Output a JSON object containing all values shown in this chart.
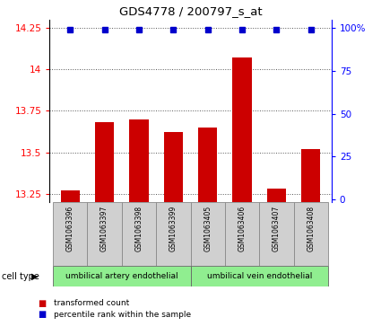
{
  "title": "GDS4778 / 200797_s_at",
  "samples": [
    "GSM1063396",
    "GSM1063397",
    "GSM1063398",
    "GSM1063399",
    "GSM1063405",
    "GSM1063406",
    "GSM1063407",
    "GSM1063408"
  ],
  "bar_values": [
    13.27,
    13.68,
    13.7,
    13.62,
    13.65,
    14.07,
    13.28,
    13.52
  ],
  "percentile_vals_right": [
    99,
    99,
    99,
    99,
    99,
    99,
    99,
    99
  ],
  "bar_color": "#cc0000",
  "percentile_color": "#0000cc",
  "ylim_left": [
    13.2,
    14.3
  ],
  "ylim_right": [
    -1.5,
    105
  ],
  "yticks_left": [
    13.25,
    13.5,
    13.75,
    14.0,
    14.25
  ],
  "yticks_right": [
    0,
    25,
    50,
    75,
    100
  ],
  "ytick_labels_left": [
    "13.25",
    "13.5",
    "13.75",
    "14",
    "14.25"
  ],
  "ytick_labels_right": [
    "0",
    "25",
    "50",
    "75",
    "100%"
  ],
  "cell_type_groups": [
    {
      "label": "umbilical artery endothelial",
      "indices": [
        0,
        1,
        2,
        3
      ],
      "color": "#90ee90"
    },
    {
      "label": "umbilical vein endothelial",
      "indices": [
        4,
        5,
        6,
        7
      ],
      "color": "#90ee90"
    }
  ],
  "cell_type_label": "cell type",
  "legend_items": [
    {
      "label": "transformed count",
      "color": "#cc0000"
    },
    {
      "label": "percentile rank within the sample",
      "color": "#0000cc"
    }
  ],
  "grid_color": "#555555",
  "sample_box_color": "#d0d0d0",
  "bar_width": 0.55,
  "bar_bottom": 13.2
}
